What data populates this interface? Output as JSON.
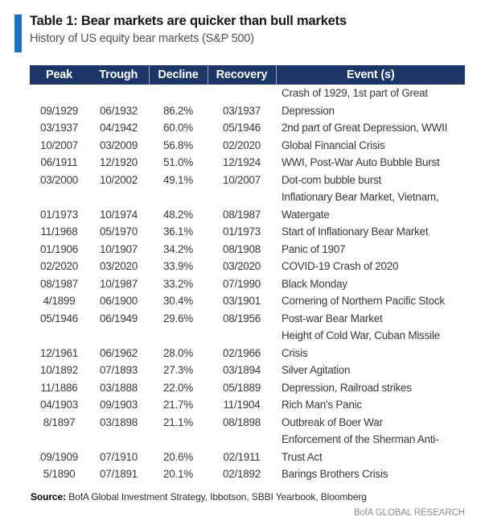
{
  "colors": {
    "navy_header": "#1c3667",
    "accent_blue": "#2170c8",
    "brand_gray": "#8e8e8e"
  },
  "header": {
    "title": "Table 1: Bear markets are quicker than bull markets",
    "subtitle": "History of US equity bear markets (S&P 500)"
  },
  "chart_data": {
    "type": "table",
    "title": "Table 1: Bear markets are quicker than bull markets",
    "subtitle": "History of US equity bear markets (S&P 500)",
    "columns": [
      "Peak",
      "Trough",
      "Decline",
      "Recovery",
      "Event (s)"
    ],
    "decline_values_pct": [
      86.2,
      60.0,
      56.8,
      51.0,
      49.1,
      48.2,
      36.1,
      34.2,
      33.9,
      33.2,
      30.4,
      29.6,
      28.0,
      27.3,
      22.0,
      21.7,
      21.1,
      20.6,
      20.1
    ],
    "rows": [
      {
        "peak": "09/1929",
        "trough": "06/1932",
        "decline": "86.2%",
        "recovery": "03/1937",
        "event": "Crash of 1929, 1st part of Great\nDepression"
      },
      {
        "peak": "03/1937",
        "trough": "04/1942",
        "decline": "60.0%",
        "recovery": "05/1946",
        "event": "2nd part of Great Depression, WWII"
      },
      {
        "peak": "10/2007",
        "trough": "03/2009",
        "decline": "56.8%",
        "recovery": "02/2020",
        "event": "Global Financial Crisis"
      },
      {
        "peak": "06/1911",
        "trough": "12/1920",
        "decline": "51.0%",
        "recovery": "12/1924",
        "event": "WWI, Post-War Auto Bubble Burst"
      },
      {
        "peak": "03/2000",
        "trough": "10/2002",
        "decline": "49.1%",
        "recovery": "10/2007",
        "event": "Dot-com bubble burst"
      },
      {
        "peak": "01/1973",
        "trough": "10/1974",
        "decline": "48.2%",
        "recovery": "08/1987",
        "event": "Inflationary Bear Market, Vietnam,\nWatergate"
      },
      {
        "peak": "11/1968",
        "trough": "05/1970",
        "decline": "36.1%",
        "recovery": "01/1973",
        "event": "Start of Inflationary Bear Market"
      },
      {
        "peak": "01/1906",
        "trough": "10/1907",
        "decline": "34.2%",
        "recovery": "08/1908",
        "event": "Panic of 1907"
      },
      {
        "peak": "02/2020",
        "trough": "03/2020",
        "decline": "33.9%",
        "recovery": "03/2020",
        "event": "COVID-19 Crash of 2020"
      },
      {
        "peak": "08/1987",
        "trough": "10/1987",
        "decline": "33.2%",
        "recovery": "07/1990",
        "event": "Black Monday"
      },
      {
        "peak": "4/1899",
        "trough": "06/1900",
        "decline": "30.4%",
        "recovery": "03/1901",
        "event": "Cornering of Northern Pacific Stock"
      },
      {
        "peak": "05/1946",
        "trough": "06/1949",
        "decline": "29.6%",
        "recovery": "08/1956",
        "event": "Post-war Bear Market"
      },
      {
        "peak": "12/1961",
        "trough": "06/1962",
        "decline": "28.0%",
        "recovery": "02/1966",
        "event": "Height of Cold War, Cuban Missile\nCrisis"
      },
      {
        "peak": "10/1892",
        "trough": "07/1893",
        "decline": "27.3%",
        "recovery": "03/1894",
        "event": "Silver Agitation"
      },
      {
        "peak": "11/1886",
        "trough": "03/1888",
        "decline": "22.0%",
        "recovery": "05/1889",
        "event": "Depression, Railroad strikes"
      },
      {
        "peak": "04/1903",
        "trough": "09/1903",
        "decline": "21.7%",
        "recovery": "11/1904",
        "event": "Rich Man's Panic"
      },
      {
        "peak": "8/1897",
        "trough": "03/1898",
        "decline": "21.1%",
        "recovery": "08/1898",
        "event": "Outbreak of Boer War"
      },
      {
        "peak": "09/1909",
        "trough": "07/1910",
        "decline": "20.6%",
        "recovery": "02/1911",
        "event": "Enforcement of the Sherman Anti-\nTrust Act"
      },
      {
        "peak": "5/1890",
        "trough": "07/1891",
        "decline": "20.1%",
        "recovery": "02/1892",
        "event": "Barings Brothers Crisis"
      }
    ]
  },
  "footer": {
    "source_label": "Source:",
    "source_text": "BofA Global Investment Strategy, Ibbotson,  SBBI Yearbook, Bloomberg",
    "brand": "BofA GLOBAL RESEARCH"
  }
}
